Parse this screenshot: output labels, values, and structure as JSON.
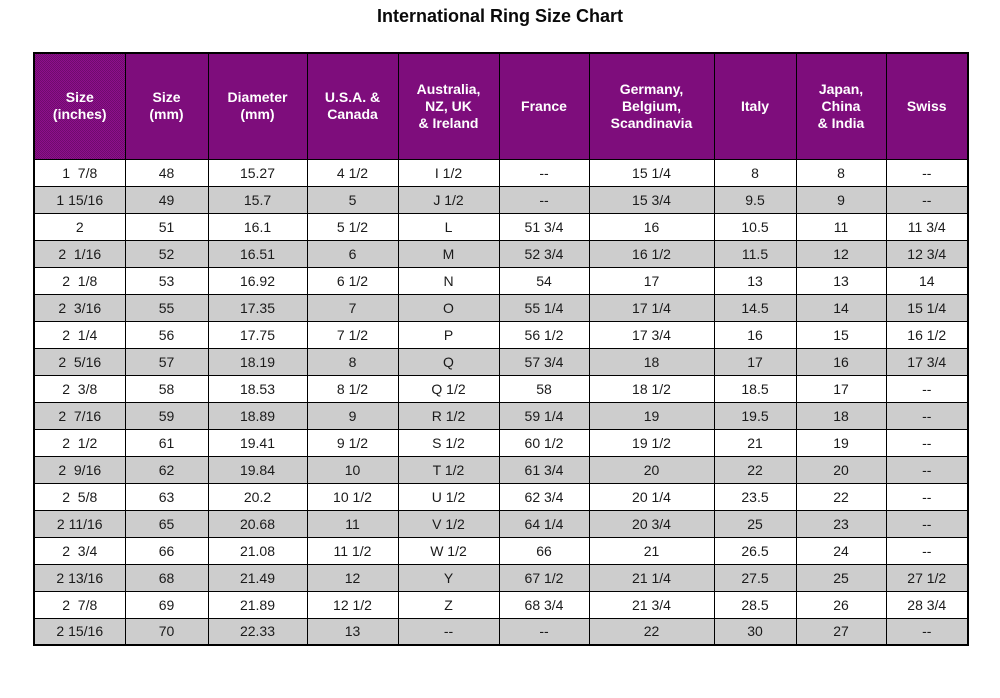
{
  "page": {
    "title": "International Ring Size Chart"
  },
  "colors": {
    "header_bg": "#8E0F8C",
    "header_bg_dot": "#6F0B6D",
    "row_alt_bg": "#D8D8D8",
    "row_alt_dot": "#C2C2C2",
    "header_text": "#FFFFFF",
    "body_text": "#1A1A1A",
    "border": "#000000",
    "page_bg": "#FFFFFF"
  },
  "chart_data": {
    "type": "table",
    "title": "International Ring Size Chart",
    "columns": [
      "Size\n(inches)",
      "Size\n(mm)",
      "Diameter\n(mm)",
      "U.S.A. &\nCanada",
      "Australia,\nNZ, UK\n& Ireland",
      "France",
      "Germany,\nBelgium,\nScandinavia",
      "Italy",
      "Japan,\nChina\n& India",
      "Swiss"
    ],
    "rows": [
      [
        "1  7/8",
        "48",
        "15.27",
        "4 1/2",
        "I 1/2",
        "--",
        "15 1/4",
        "8",
        "8",
        "--"
      ],
      [
        "1 15/16",
        "49",
        "15.7",
        "5",
        "J 1/2",
        "--",
        "15 3/4",
        "9.5",
        "9",
        "--"
      ],
      [
        "2",
        "51",
        "16.1",
        "5 1/2",
        "L",
        "51 3/4",
        "16",
        "10.5",
        "11",
        "11 3/4"
      ],
      [
        "2  1/16",
        "52",
        "16.51",
        "6",
        "M",
        "52 3/4",
        "16 1/2",
        "11.5",
        "12",
        "12 3/4"
      ],
      [
        "2  1/8",
        "53",
        "16.92",
        "6 1/2",
        "N",
        "54",
        "17",
        "13",
        "13",
        "14"
      ],
      [
        "2  3/16",
        "55",
        "17.35",
        "7",
        "O",
        "55 1/4",
        "17 1/4",
        "14.5",
        "14",
        "15 1/4"
      ],
      [
        "2  1/4",
        "56",
        "17.75",
        "7 1/2",
        "P",
        "56 1/2",
        "17 3/4",
        "16",
        "15",
        "16 1/2"
      ],
      [
        "2  5/16",
        "57",
        "18.19",
        "8",
        "Q",
        "57 3/4",
        "18",
        "17",
        "16",
        "17 3/4"
      ],
      [
        "2  3/8",
        "58",
        "18.53",
        "8 1/2",
        "Q 1/2",
        "58",
        "18 1/2",
        "18.5",
        "17",
        "--"
      ],
      [
        "2  7/16",
        "59",
        "18.89",
        "9",
        "R 1/2",
        "59 1/4",
        "19",
        "19.5",
        "18",
        "--"
      ],
      [
        "2  1/2",
        "61",
        "19.41",
        "9 1/2",
        "S 1/2",
        "60 1/2",
        "19 1/2",
        "21",
        "19",
        "--"
      ],
      [
        "2  9/16",
        "62",
        "19.84",
        "10",
        "T 1/2",
        "61 3/4",
        "20",
        "22",
        "20",
        "--"
      ],
      [
        "2  5/8",
        "63",
        "20.2",
        "10 1/2",
        "U 1/2",
        "62 3/4",
        "20 1/4",
        "23.5",
        "22",
        "--"
      ],
      [
        "2 11/16",
        "65",
        "20.68",
        "11",
        "V 1/2",
        "64 1/4",
        "20 3/4",
        "25",
        "23",
        "--"
      ],
      [
        "2  3/4",
        "66",
        "21.08",
        "11 1/2",
        "W 1/2",
        "66",
        "21",
        "26.5",
        "24",
        "--"
      ],
      [
        "2 13/16",
        "68",
        "21.49",
        "12",
        "Y",
        "67 1/2",
        "21 1/4",
        "27.5",
        "25",
        "27 1/2"
      ],
      [
        "2  7/8",
        "69",
        "21.89",
        "12 1/2",
        "Z",
        "68 3/4",
        "21 3/4",
        "28.5",
        "26",
        "28 3/4"
      ],
      [
        "2 15/16",
        "70",
        "22.33",
        "13",
        "--",
        "--",
        "22",
        "30",
        "27",
        "--"
      ]
    ]
  }
}
